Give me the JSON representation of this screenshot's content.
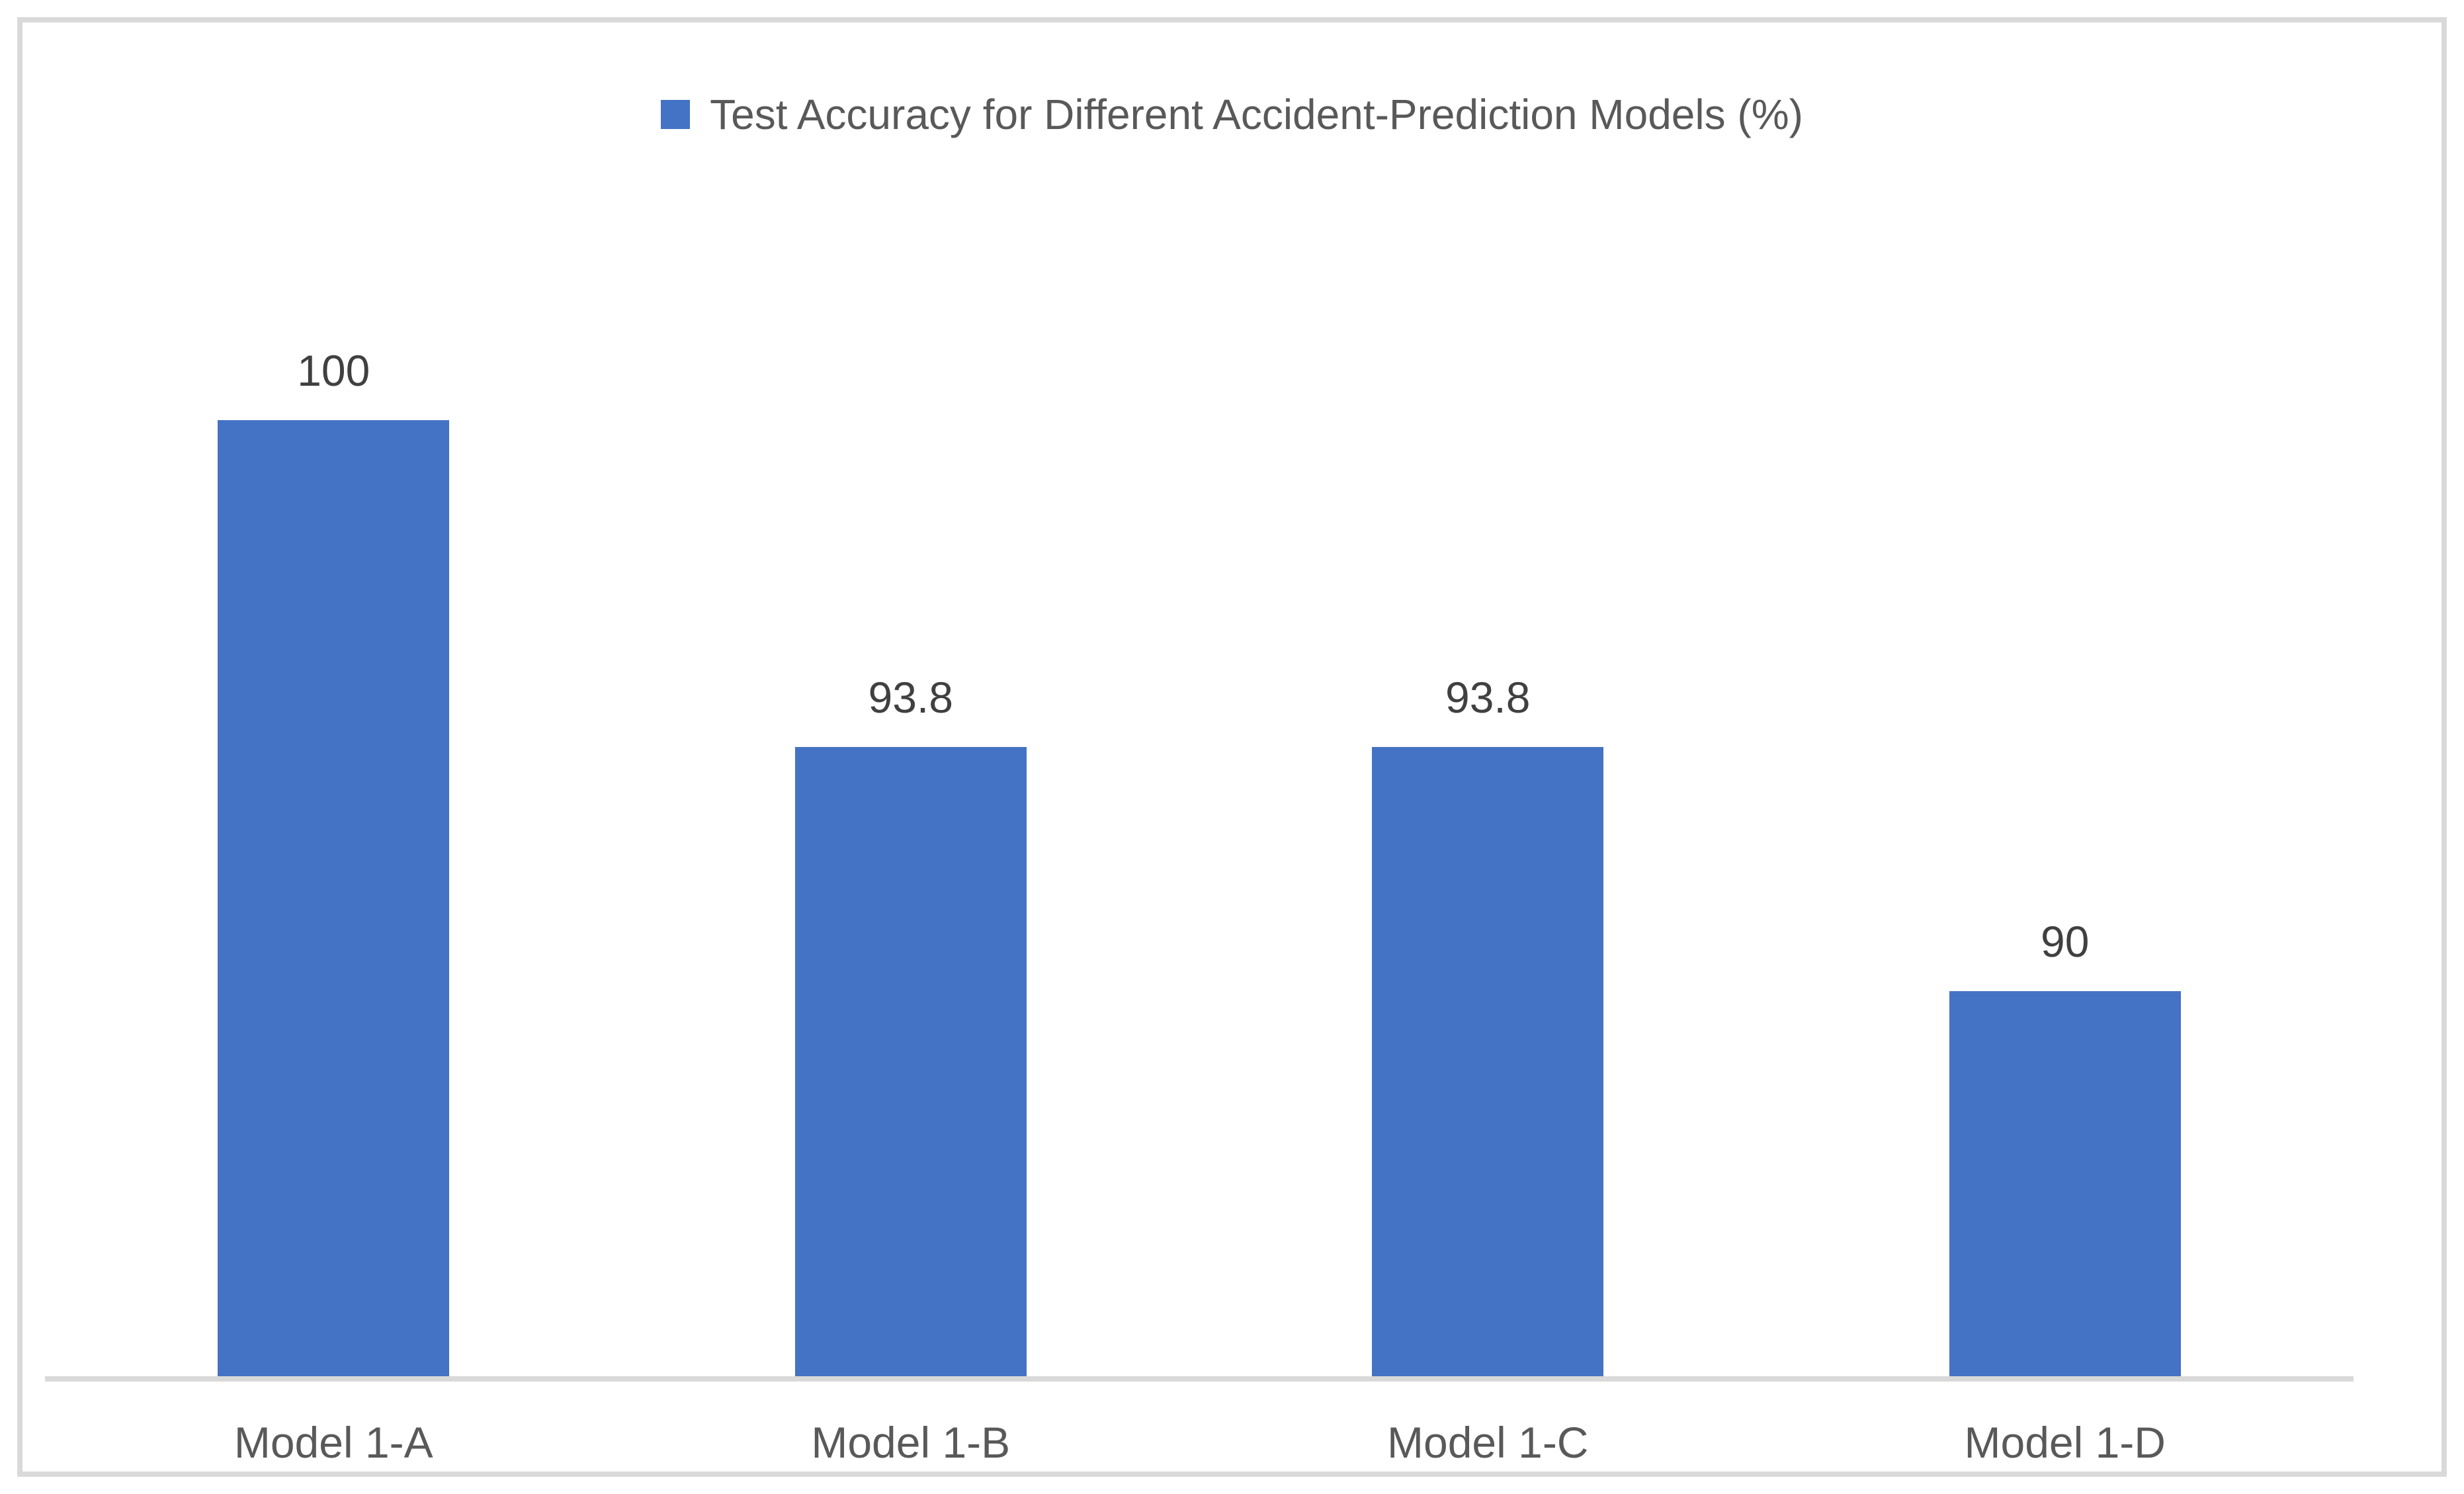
{
  "chart_data": {
    "type": "bar",
    "title": "Test Accuracy for Different Accident-Prediction Models (%)",
    "series_name": "Test Accuracy for Different Accident-Prediction Models (%)",
    "categories": [
      "Model 1-A",
      "Model 1-B",
      "Model 1-C",
      "Model 1-D"
    ],
    "values": [
      100,
      93.8,
      93.8,
      90
    ],
    "data_labels": [
      "100",
      "93.8",
      "93.8",
      "90"
    ],
    "xlabel": "",
    "ylabel": "",
    "ylim": [
      84,
      100
    ],
    "grid": false,
    "y_axis_visible": false,
    "legend_position": "top-center",
    "bar_color": "#4472C4"
  },
  "legend": {
    "label": "Test Accuracy for Different Accident-Prediction Models (%)",
    "marker_icon": "square"
  },
  "colors": {
    "background": "#FFFFFF",
    "bar": "#4472C4",
    "frame_border": "#D9D9D9",
    "axis_line": "#D9D9D9",
    "legend_text": "#595959",
    "category_text": "#595959",
    "data_label_text": "#404040"
  }
}
